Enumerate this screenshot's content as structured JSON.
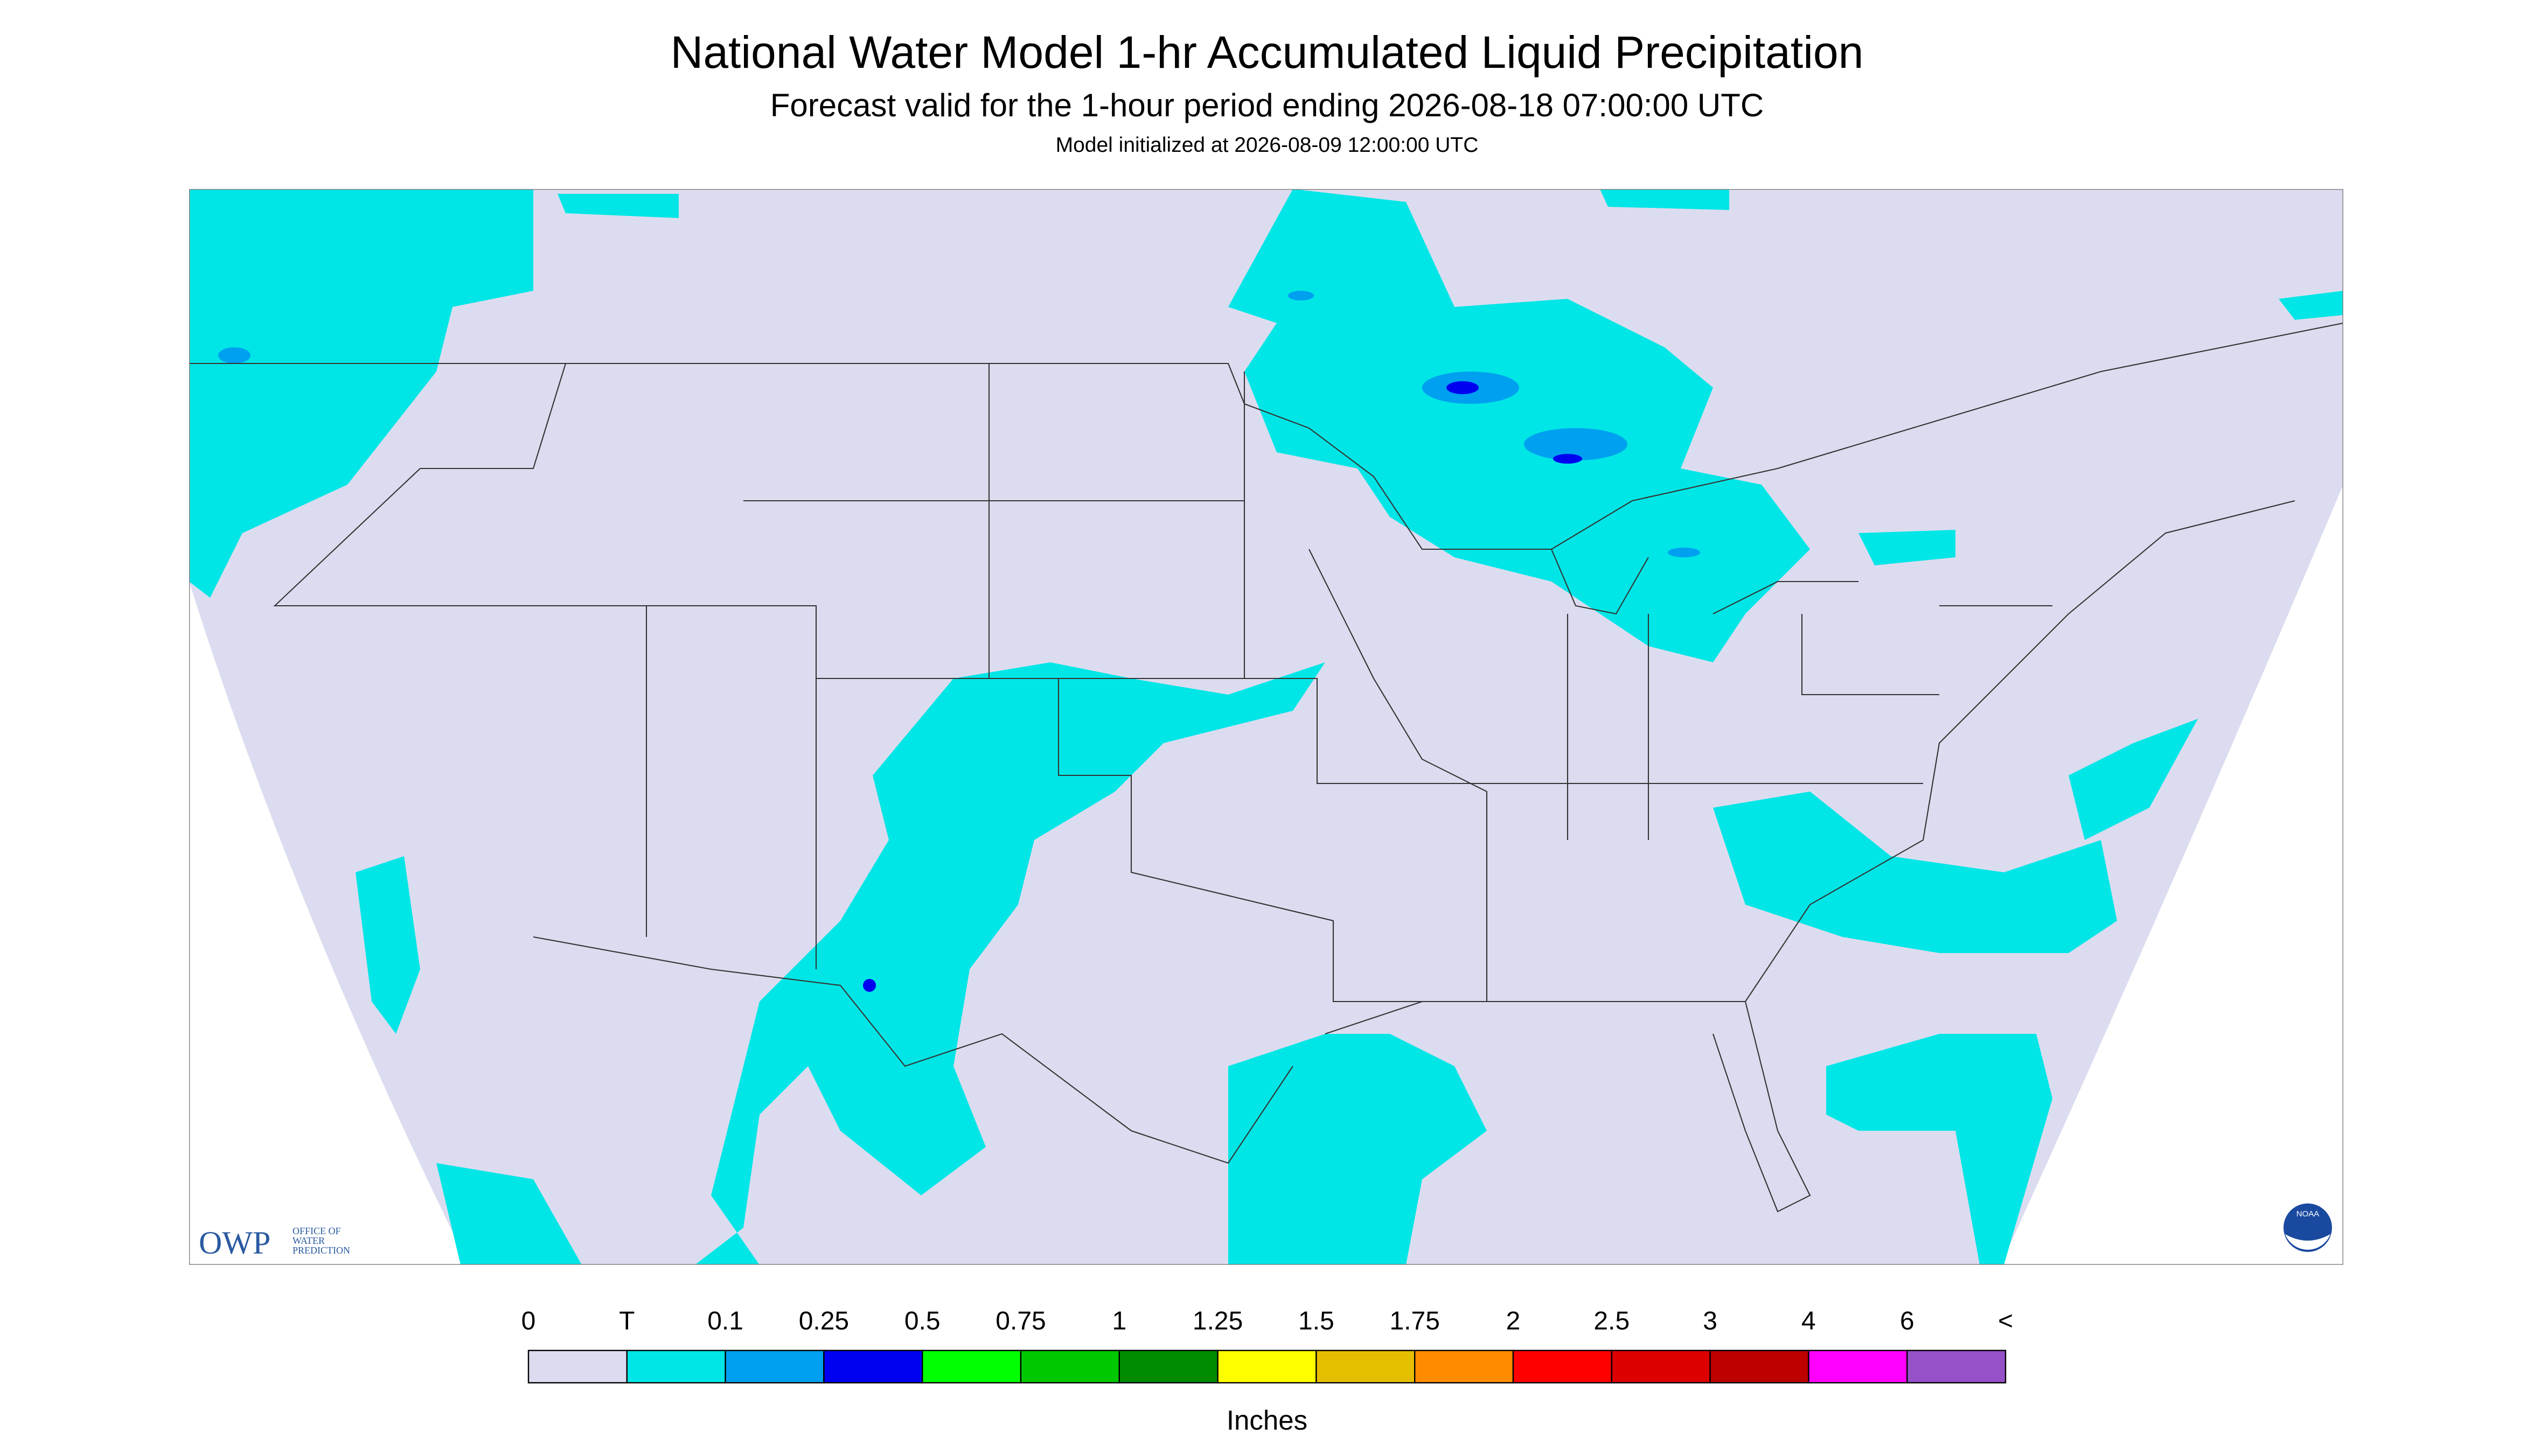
{
  "header": {
    "title": "National Water Model 1-hr Accumulated Liquid Precipitation",
    "subtitle": "Forecast valid for the 1-hour period ending 2026-08-18 07:00:00 UTC",
    "note": "Model initialized at 2026-08-09 12:00:00 UTC"
  },
  "logo": {
    "name": "OWP",
    "line1": "OFFICE OF",
    "line2": "WATER",
    "line3": "PREDICTION",
    "noaa": "NOAA"
  },
  "legend": {
    "labels": [
      "0",
      "T",
      "0.1",
      "0.25",
      "0.5",
      "0.75",
      "1",
      "1.25",
      "1.5",
      "1.75",
      "2",
      "2.5",
      "3",
      "4",
      "6",
      "<"
    ],
    "colors": [
      "#dcdcf0",
      "#00e6e6",
      "#00a0f0",
      "#0000f0",
      "#00ff00",
      "#00c800",
      "#008c00",
      "#ffff00",
      "#e6be00",
      "#ff8c00",
      "#ff0000",
      "#dc0000",
      "#be0000",
      "#ff00ff",
      "#9650c8"
    ],
    "unit": "Inches"
  }
}
